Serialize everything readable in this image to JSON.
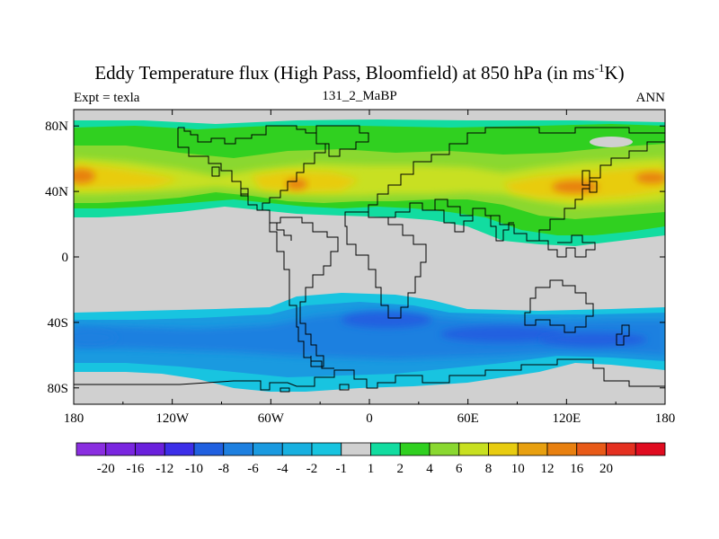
{
  "title": {
    "main": "Eddy Temperature flux (High Pass, Bloomfield) at 850 hPa (in ms",
    "sup": "-1",
    "end": "K)"
  },
  "left_label": "Expt = texla",
  "center_label": "131_2_MaBP",
  "right_label": "ANN",
  "chart_data": {
    "type": "heatmap",
    "title": "Eddy Temperature flux (High Pass, Bloomfield) at 850 hPa (in ms-1K)",
    "projection": "cylindrical equidistant, 180W-180E, 90S-90N",
    "x_ticks": [
      {
        "lon": -180,
        "label": "180"
      },
      {
        "lon": -120,
        "label": "120W"
      },
      {
        "lon": -60,
        "label": "60W"
      },
      {
        "lon": 0,
        "label": "0"
      },
      {
        "lon": 60,
        "label": "60E"
      },
      {
        "lon": 120,
        "label": "120E"
      },
      {
        "lon": 180,
        "label": "180"
      }
    ],
    "y_ticks": [
      {
        "lat": 80,
        "label": "80N"
      },
      {
        "lat": 40,
        "label": "40N"
      },
      {
        "lat": 0,
        "label": "0"
      },
      {
        "lat": -40,
        "label": "40S"
      },
      {
        "lat": -80,
        "label": "80S"
      }
    ],
    "background_color": "#d0d0d0",
    "colorbar": {
      "colors": [
        "#8a2ee0",
        "#7a26e0",
        "#6a20dc",
        "#3c2ee8",
        "#2060e0",
        "#1e80e0",
        "#1a9ae0",
        "#18b0e0",
        "#18c4e0",
        "#d0d0d0",
        "#12dca0",
        "#30d020",
        "#8ad830",
        "#c8e020",
        "#e8cc10",
        "#e8a010",
        "#e88010",
        "#e85a18",
        "#e43020",
        "#e00c20"
      ],
      "labels": [
        "-20",
        "-16",
        "-12",
        "-10",
        "-8",
        "-6",
        "-4",
        "-2",
        "-1",
        "1",
        "2",
        "4",
        "6",
        "8",
        "10",
        "12",
        "16",
        "20"
      ]
    },
    "regions": [
      {
        "name": "north-band-base",
        "value": 2,
        "color": "#12dca0",
        "lon_range": [
          -180,
          180
        ],
        "lat_range": [
          25,
          82
        ]
      },
      {
        "name": "north-band-green",
        "value": 4,
        "color": "#30d020",
        "lon_range": [
          -180,
          180
        ],
        "lat_range": [
          30,
          78
        ]
      },
      {
        "name": "north-band-yellowgreen",
        "value": 6,
        "color": "#8ad830",
        "lon_range": [
          -180,
          180
        ],
        "lat_range": [
          34,
          65
        ]
      },
      {
        "name": "north-pacific-max",
        "value": 10,
        "color": "#e8a010",
        "center": [
          -170,
          50
        ]
      },
      {
        "name": "north-atlantic-max",
        "value": 10,
        "color": "#e8a010",
        "center": [
          -40,
          43
        ]
      },
      {
        "name": "northwest-pacific-max",
        "value": 12,
        "color": "#e88010",
        "center": [
          140,
          45
        ]
      },
      {
        "name": "south-band-base",
        "value": -4,
        "color": "#1a9ae0",
        "lon_range": [
          -180,
          180
        ],
        "lat_range": [
          -82,
          -30
        ]
      },
      {
        "name": "south-band-mid",
        "value": -6,
        "color": "#1e80e0",
        "lon_range": [
          -180,
          180
        ],
        "lat_range": [
          -68,
          -34
        ]
      },
      {
        "name": "southern-ocean-max",
        "value": -8,
        "color": "#2060e0",
        "center": [
          130,
          -50
        ]
      },
      {
        "name": "south-indian-max",
        "value": -8,
        "color": "#2060e0",
        "center": [
          10,
          -40
        ]
      }
    ]
  }
}
